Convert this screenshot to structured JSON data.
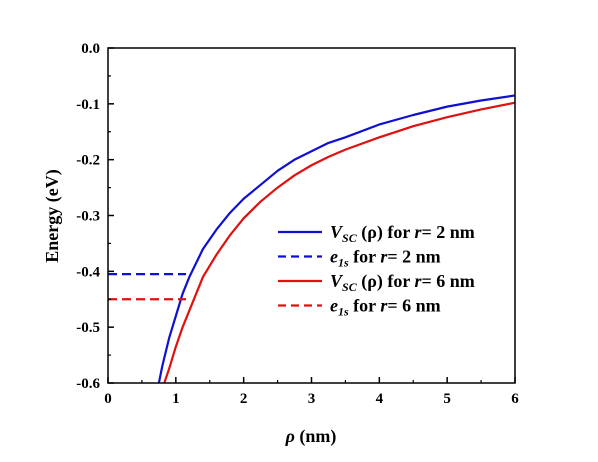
{
  "chart_data": {
    "type": "line",
    "xlabel": "ρ (nm)",
    "ylabel": "Energy (eV)",
    "xlim": [
      0,
      6
    ],
    "ylim": [
      -0.6,
      0.0
    ],
    "x_ticks": [
      0,
      1,
      2,
      3,
      4,
      5,
      6
    ],
    "y_ticks": [
      0.0,
      -0.1,
      -0.2,
      -0.3,
      -0.4,
      -0.5,
      -0.6
    ],
    "x_tick_labels": [
      "0",
      "1",
      "2",
      "3",
      "4",
      "5",
      "6"
    ],
    "y_tick_labels": [
      "0.0",
      "-0.1",
      "-0.2",
      "-0.3",
      "-0.4",
      "-0.5",
      "-0.6"
    ],
    "grid": false,
    "legend_position": "center-right",
    "series": [
      {
        "name": "VSC (ρ) for r= 2 nm",
        "legend_parts": {
          "v": "V",
          "sub": "SC",
          "rest": " (ρ) for ",
          "r": "r",
          "tail": "= 2 nm"
        },
        "color": "#1010d0",
        "style": "solid",
        "x": [
          0.75,
          0.8,
          0.9,
          1.0,
          1.1,
          1.2,
          1.4,
          1.6,
          1.8,
          2.0,
          2.25,
          2.5,
          2.75,
          3.0,
          3.25,
          3.5,
          4.0,
          4.5,
          5.0,
          5.5,
          6.0
        ],
        "y": [
          -0.6,
          -0.57,
          -0.52,
          -0.48,
          -0.44,
          -0.41,
          -0.36,
          -0.325,
          -0.295,
          -0.27,
          -0.245,
          -0.22,
          -0.2,
          -0.185,
          -0.17,
          -0.16,
          -0.137,
          -0.12,
          -0.105,
          -0.094,
          -0.085
        ]
      },
      {
        "name": "e1s for r= 2 nm",
        "legend_parts": {
          "v": "e",
          "sub": "1s",
          "rest": " for ",
          "r": "r",
          "tail": "= 2 nm"
        },
        "color": "#1010d0",
        "style": "dashed",
        "x": [
          0,
          1.15
        ],
        "y": [
          -0.405,
          -0.405
        ]
      },
      {
        "name": "VSC (ρ) for r= 6 nm",
        "legend_parts": {
          "v": "V",
          "sub": "SC",
          "rest": " (ρ) for ",
          "r": "r",
          "tail": "= 6 nm"
        },
        "color": "#e01010",
        "style": "solid",
        "x": [
          0.83,
          0.9,
          1.0,
          1.1,
          1.2,
          1.4,
          1.6,
          1.8,
          2.0,
          2.25,
          2.5,
          2.75,
          3.0,
          3.25,
          3.5,
          4.0,
          4.5,
          5.0,
          5.5,
          6.0
        ],
        "y": [
          -0.6,
          -0.575,
          -0.535,
          -0.5,
          -0.47,
          -0.41,
          -0.37,
          -0.335,
          -0.305,
          -0.275,
          -0.25,
          -0.228,
          -0.21,
          -0.195,
          -0.182,
          -0.16,
          -0.14,
          -0.124,
          -0.11,
          -0.098
        ]
      },
      {
        "name": "e1s for r= 6 nm",
        "legend_parts": {
          "v": "e",
          "sub": "1s",
          "rest": " for ",
          "r": "r",
          "tail": "= 6 nm"
        },
        "color": "#e01010",
        "style": "dashed",
        "x": [
          0,
          1.15
        ],
        "y": [
          -0.45,
          -0.45
        ]
      }
    ]
  }
}
